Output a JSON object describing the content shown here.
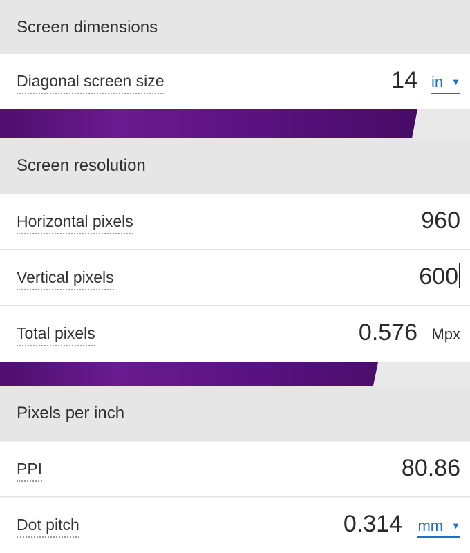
{
  "sections": {
    "screen_dimensions": {
      "title": "Screen dimensions",
      "diagonal": {
        "label": "Diagonal screen size",
        "value": "14",
        "unit": "in"
      }
    },
    "screen_resolution": {
      "title": "Screen resolution",
      "horizontal": {
        "label": "Horizontal pixels",
        "value": "960"
      },
      "vertical": {
        "label": "Vertical pixels",
        "value": "600"
      },
      "total": {
        "label": "Total pixels",
        "value": "0.576",
        "unit": "Mpx"
      }
    },
    "pixels_per_inch": {
      "title": "Pixels per inch",
      "ppi": {
        "label": "PPI",
        "value": "80.86"
      },
      "dot_pitch": {
        "label": "Dot pitch",
        "value": "0.314",
        "unit": "mm"
      }
    }
  },
  "icons": {
    "dropdown": "caret-down-icon"
  },
  "colors": {
    "accent_link": "#1a72c8",
    "band_purple": "#5a1280",
    "header_bg": "#e6e6e6",
    "row_bg": "#ffffff"
  }
}
